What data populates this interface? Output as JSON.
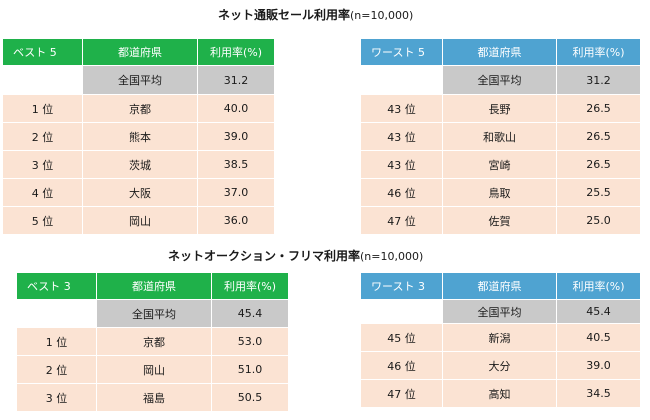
{
  "sections": [
    {
      "title": "ネット通販セール利用率",
      "subtitle": "(n=10,000)",
      "best": {
        "headers": [
          "ベスト 5",
          "都道府県",
          "利用率(%)"
        ],
        "average": {
          "label": "全国平均",
          "value": "31.2"
        },
        "rows": [
          {
            "rank": "1 位",
            "pref": "京都",
            "value": "40.0"
          },
          {
            "rank": "2 位",
            "pref": "熊本",
            "value": "39.0"
          },
          {
            "rank": "3 位",
            "pref": "茨城",
            "value": "38.5"
          },
          {
            "rank": "4 位",
            "pref": "大阪",
            "value": "37.0"
          },
          {
            "rank": "5 位",
            "pref": "岡山",
            "value": "36.0"
          }
        ]
      },
      "worst": {
        "headers": [
          "ワースト 5",
          "都道府県",
          "利用率(%)"
        ],
        "average": {
          "label": "全国平均",
          "value": "31.2"
        },
        "rows": [
          {
            "rank": "43 位",
            "pref": "長野",
            "value": "26.5"
          },
          {
            "rank": "43 位",
            "pref": "和歌山",
            "value": "26.5"
          },
          {
            "rank": "43 位",
            "pref": "宮崎",
            "value": "26.5"
          },
          {
            "rank": "46 位",
            "pref": "鳥取",
            "value": "25.5"
          },
          {
            "rank": "47 位",
            "pref": "佐賀",
            "value": "25.0"
          }
        ]
      }
    },
    {
      "title": "ネットオークション・フリマ利用率",
      "subtitle": "(n=10,000)",
      "best": {
        "headers": [
          "ベスト 3",
          "都道府県",
          "利用率(%)"
        ],
        "average": {
          "label": "全国平均",
          "value": "45.4"
        },
        "rows": [
          {
            "rank": "1 位",
            "pref": "京都",
            "value": "53.0"
          },
          {
            "rank": "2 位",
            "pref": "岡山",
            "value": "51.0"
          },
          {
            "rank": "3 位",
            "pref": "福島",
            "value": "50.5"
          }
        ]
      },
      "worst": {
        "headers": [
          "ワースト 3",
          "都道府県",
          "利用率(%)"
        ],
        "average": {
          "label": "全国平均",
          "value": "45.4"
        },
        "rows": [
          {
            "rank": "45 位",
            "pref": "新潟",
            "value": "40.5"
          },
          {
            "rank": "46 位",
            "pref": "大分",
            "value": "39.0"
          },
          {
            "rank": "47 位",
            "pref": "高知",
            "value": "34.5"
          }
        ]
      }
    }
  ]
}
